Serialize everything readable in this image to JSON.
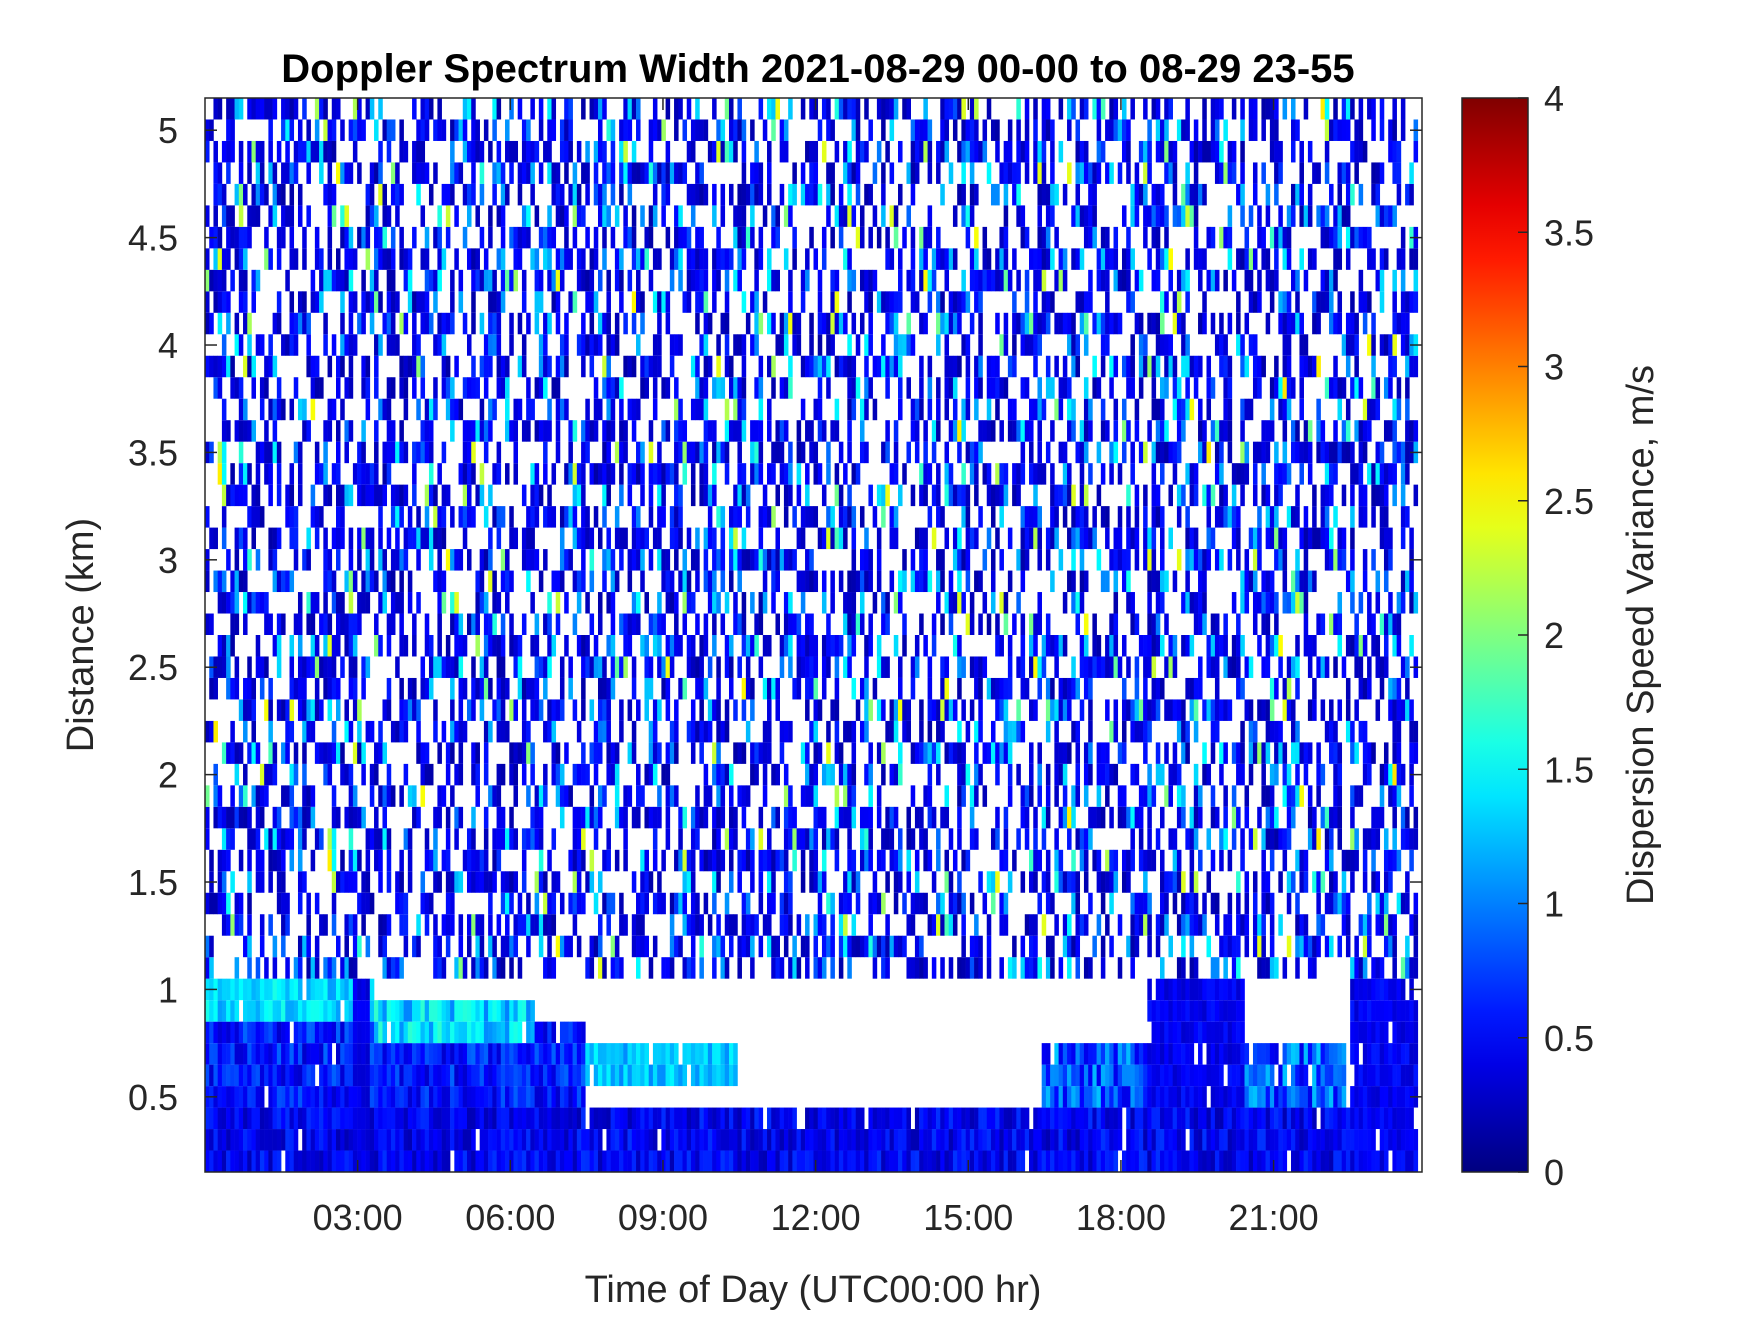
{
  "chart_data": {
    "type": "heatmap",
    "title": "Doppler Spectrum Width 2021-08-29 00-00 to 08-29 23-55",
    "xlabel": "Time of Day (UTC00:00 hr)",
    "ylabel": "Distance (km)",
    "colorbar_label": "Dispersion Speed Variance, m/s",
    "colormap": "jet",
    "xlim_hours": [
      0,
      23.9167
    ],
    "ylim_km": [
      0.15,
      5.15
    ],
    "clim": [
      0,
      4
    ],
    "x_ticks": [
      {
        "hour": 3,
        "label": "03:00"
      },
      {
        "hour": 6,
        "label": "06:00"
      },
      {
        "hour": 9,
        "label": "09:00"
      },
      {
        "hour": 12,
        "label": "12:00"
      },
      {
        "hour": 15,
        "label": "15:00"
      },
      {
        "hour": 18,
        "label": "18:00"
      },
      {
        "hour": 21,
        "label": "21:00"
      }
    ],
    "y_ticks": [
      {
        "km": 0.5,
        "label": "0.5"
      },
      {
        "km": 1,
        "label": "1"
      },
      {
        "km": 1.5,
        "label": "1.5"
      },
      {
        "km": 2,
        "label": "2"
      },
      {
        "km": 2.5,
        "label": "2.5"
      },
      {
        "km": 3,
        "label": "3"
      },
      {
        "km": 3.5,
        "label": "3.5"
      },
      {
        "km": 4,
        "label": "4"
      },
      {
        "km": 4.5,
        "label": "4.5"
      },
      {
        "km": 5,
        "label": "5"
      }
    ],
    "colorbar_ticks": [
      {
        "value": 0,
        "label": "0"
      },
      {
        "value": 0.5,
        "label": "0.5"
      },
      {
        "value": 1,
        "label": "1"
      },
      {
        "value": 1.5,
        "label": "1.5"
      },
      {
        "value": 2,
        "label": "2"
      },
      {
        "value": 2.5,
        "label": "2.5"
      },
      {
        "value": 3,
        "label": "3"
      },
      {
        "value": 3.5,
        "label": "3.5"
      },
      {
        "value": 4,
        "label": "4"
      }
    ],
    "time_step_minutes": 5,
    "range_gate_km": 0.1,
    "regions": [
      {
        "description": "boundary layer, dense low values",
        "x_hours": [
          0,
          23.9167
        ],
        "y_km": [
          0.15,
          0.45
        ],
        "value_range": [
          0.2,
          0.7
        ]
      },
      {
        "description": "early morning layer",
        "x_hours": [
          0,
          7.5
        ],
        "y_km": [
          0.45,
          0.85
        ],
        "value_range": [
          0.3,
          0.9
        ]
      },
      {
        "description": "cyan band",
        "x_hours": [
          0,
          3.3
        ],
        "y_km": [
          0.85,
          1.05
        ],
        "value_range": [
          1.1,
          1.6
        ]
      },
      {
        "description": "cyan band",
        "x_hours": [
          3.3,
          6.5
        ],
        "y_km": [
          0.75,
          0.95
        ],
        "value_range": [
          1.0,
          1.7
        ]
      },
      {
        "description": "cyan band",
        "x_hours": [
          7.5,
          10.5
        ],
        "y_km": [
          0.55,
          0.75
        ],
        "value_range": [
          1.0,
          1.5
        ]
      },
      {
        "description": "afternoon layer",
        "x_hours": [
          16.5,
          22.5
        ],
        "y_km": [
          0.4,
          0.75
        ],
        "value_range": [
          0.4,
          1.3
        ]
      },
      {
        "description": "column near 03:00",
        "x_hours": [
          2.95,
          3.25
        ],
        "y_km": [
          0.15,
          3.25
        ],
        "value_range": [
          0.3,
          0.5
        ]
      },
      {
        "description": "columns near 19:00-20:30",
        "x_hours": [
          18.6,
          20.5
        ],
        "y_km": [
          0.45,
          1.85
        ],
        "value_range": [
          0.3,
          0.6
        ]
      },
      {
        "description": "column near 23:00",
        "x_hours": [
          22.55,
          23.9167
        ],
        "y_km": [
          0.15,
          3.25
        ],
        "value_range": [
          0.3,
          0.6
        ]
      },
      {
        "description": "sparse scattered returns aloft",
        "x_hours": [
          0,
          23.9167
        ],
        "y_km": [
          1.05,
          5.15
        ],
        "value_range": [
          0.0,
          2.6
        ]
      }
    ]
  }
}
